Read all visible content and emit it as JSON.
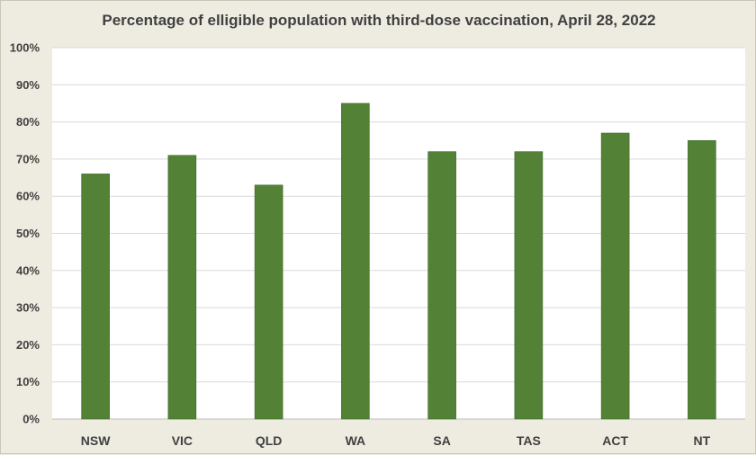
{
  "chart_data": {
    "type": "bar",
    "title": "Percentage of elligible population with third-dose vaccination, April 28, 2022",
    "categories": [
      "NSW",
      "VIC",
      "QLD",
      "WA",
      "SA",
      "TAS",
      "ACT",
      "NT"
    ],
    "values": [
      66,
      71,
      63,
      85,
      72,
      72,
      77,
      75
    ],
    "ylim": [
      0,
      100
    ],
    "yticks": [
      "0%",
      "10%",
      "20%",
      "30%",
      "40%",
      "50%",
      "60%",
      "70%",
      "80%",
      "90%",
      "100%"
    ],
    "grid": true,
    "legend": "none",
    "bar_color": "#538135",
    "plot_background": "#ffffff",
    "chart_background": "#eeece1"
  }
}
